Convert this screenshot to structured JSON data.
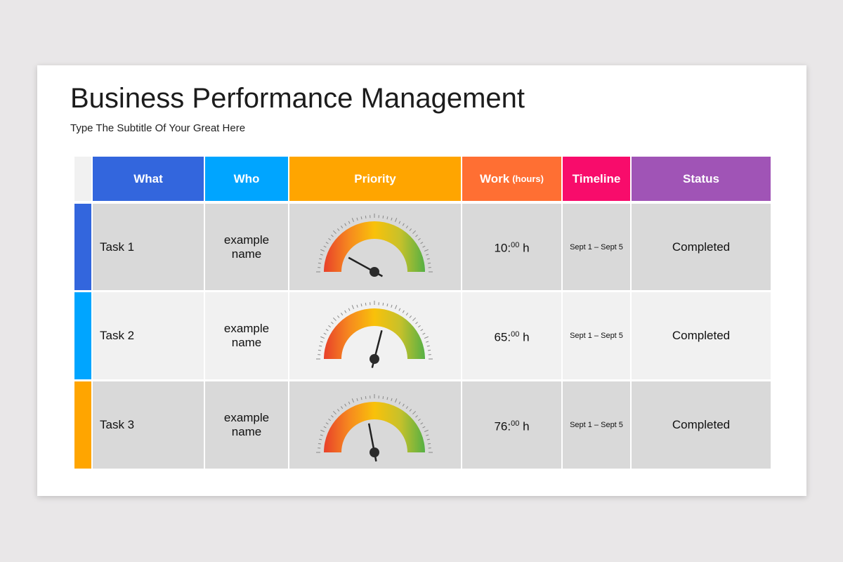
{
  "title": "Business Performance Management",
  "subtitle": "Type The Subtitle Of Your Great Here",
  "headers": {
    "what": "What",
    "who": "Who",
    "priority": "Priority",
    "work": "Work",
    "work_unit": "(hours)",
    "timeline": "Timeline",
    "status": "Status"
  },
  "header_colors": {
    "what": "#3366dd",
    "who": "#00a5ff",
    "priority": "#ffa500",
    "work": "#ff6f33",
    "timeline": "#f80c6b",
    "status": "#a054b6"
  },
  "rows": [
    {
      "what": "Task 1",
      "who": "example name",
      "priority_level": 0.16,
      "work_hours": "10:",
      "work_min": "00",
      "work_suffix": " h",
      "timeline": "Sept 1 – Sept 5",
      "status": "Completed",
      "stripe_color": "#3366dd"
    },
    {
      "what": "Task 2",
      "who": "example name",
      "priority_level": 0.58,
      "work_hours": "65:",
      "work_min": "00",
      "work_suffix": " h",
      "timeline": "Sept 1 – Sept 5",
      "status": "Completed",
      "stripe_color": "#00a5ff"
    },
    {
      "what": "Task 3",
      "who": "example name",
      "priority_level": 0.44,
      "work_hours": "76:",
      "work_min": "00",
      "work_suffix": " h",
      "timeline": "Sept 1 – Sept 5",
      "status": "Completed",
      "stripe_color": "#ffa500"
    }
  ]
}
